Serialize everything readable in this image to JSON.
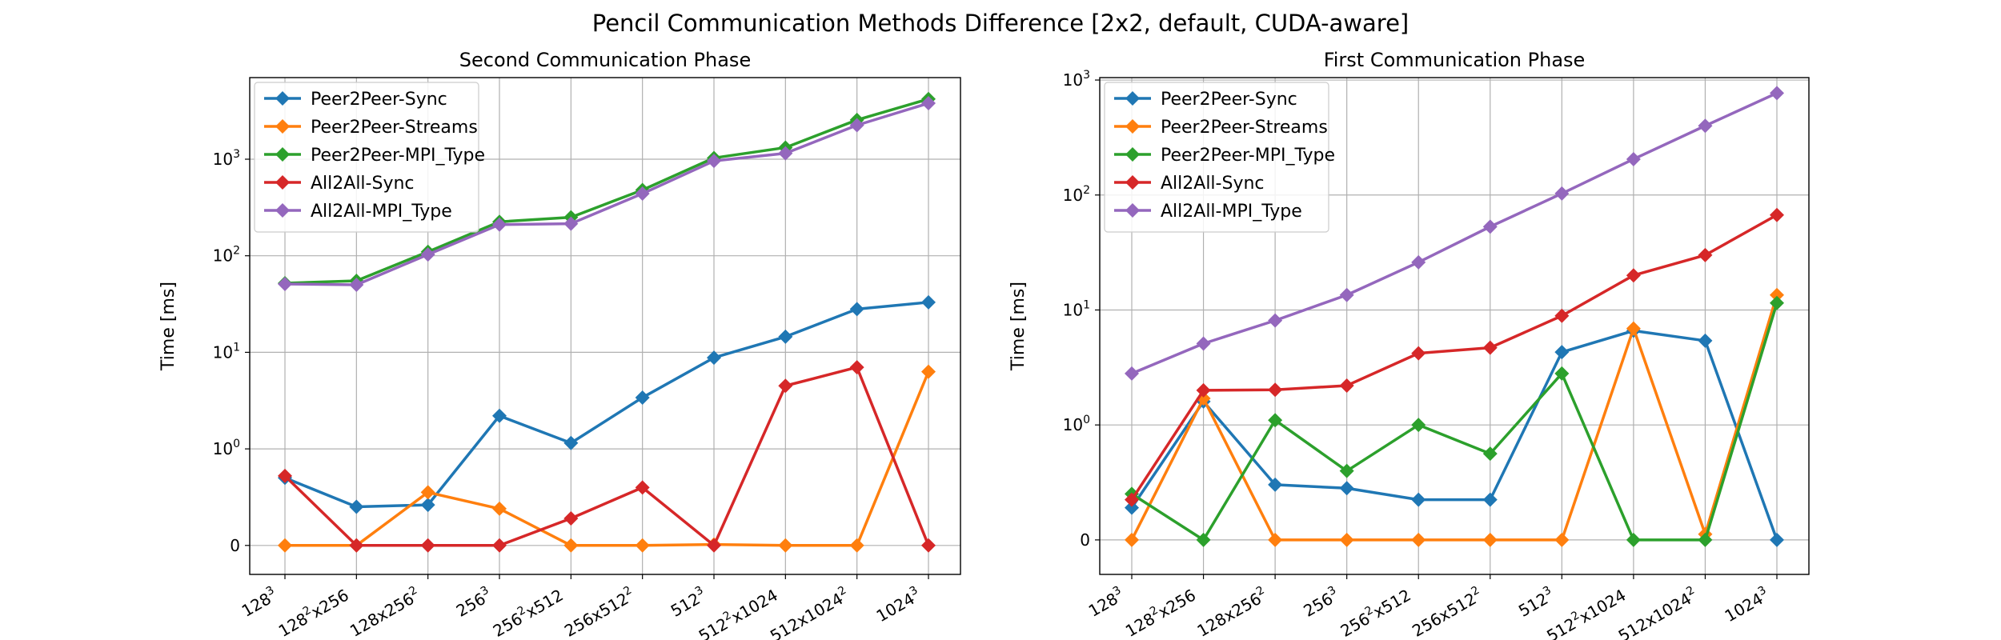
{
  "figure": {
    "title": "Pencil Communication Methods Difference [2x2, default, CUDA-aware]"
  },
  "chart_data": [
    {
      "type": "line",
      "title": "Second Communication Phase",
      "ylabel": "Time [ms]",
      "xlabel": "",
      "yscale": "symlog",
      "ylim": [
        -0.3,
        7000
      ],
      "yticks": [
        {
          "value": 0,
          "label": "0"
        },
        {
          "value": 1,
          "label": "10",
          "sup": "0"
        },
        {
          "value": 10,
          "label": "10",
          "sup": "1"
        },
        {
          "value": 100,
          "label": "10",
          "sup": "2"
        },
        {
          "value": 1000,
          "label": "10",
          "sup": "3"
        }
      ],
      "grid": true,
      "legend": "upper-left",
      "categories": [
        {
          "base": "128",
          "sup": "3",
          "tail": ""
        },
        {
          "base": "128",
          "sup": "2",
          "tail": "x256"
        },
        {
          "base": "128x256",
          "sup": "2",
          "tail": ""
        },
        {
          "base": "256",
          "sup": "3",
          "tail": ""
        },
        {
          "base": "256",
          "sup": "2",
          "tail": "x512"
        },
        {
          "base": "256x512",
          "sup": "2",
          "tail": ""
        },
        {
          "base": "512",
          "sup": "3",
          "tail": ""
        },
        {
          "base": "512",
          "sup": "2",
          "tail": "x1024"
        },
        {
          "base": "512x1024",
          "sup": "2",
          "tail": ""
        },
        {
          "base": "1024",
          "sup": "3",
          "tail": ""
        }
      ],
      "series": [
        {
          "name": "Peer2Peer-Sync",
          "color": "#1f77b4",
          "values": [
            0.7,
            0.4,
            0.42,
            2.2,
            1.15,
            3.4,
            8.8,
            14.5,
            28,
            33
          ]
        },
        {
          "name": "Peer2Peer-Streams",
          "color": "#ff7f0e",
          "values": [
            0.0,
            0.0,
            0.55,
            0.38,
            0.0,
            0.0,
            0.01,
            0.0,
            0.0,
            6.3
          ]
        },
        {
          "name": "Peer2Peer-MPI_Type",
          "color": "#2ca02c",
          "values": [
            52,
            55,
            110,
            225,
            250,
            480,
            1030,
            1320,
            2550,
            4200
          ]
        },
        {
          "name": "All2All-Sync",
          "color": "#d62728",
          "values": [
            0.72,
            0.0,
            0.0,
            0.0,
            0.28,
            0.6,
            0.0,
            4.5,
            7.0,
            0.0
          ]
        },
        {
          "name": "All2All-MPI_Type",
          "color": "#9467bd",
          "values": [
            51,
            50,
            103,
            210,
            215,
            440,
            960,
            1150,
            2250,
            3800
          ]
        }
      ]
    },
    {
      "type": "line",
      "title": "First Communication Phase",
      "ylabel": "Time [ms]",
      "xlabel": "",
      "yscale": "symlog",
      "ylim": [
        -0.3,
        1050
      ],
      "yticks": [
        {
          "value": 0,
          "label": "0"
        },
        {
          "value": 1,
          "label": "10",
          "sup": "0"
        },
        {
          "value": 10,
          "label": "10",
          "sup": "1"
        },
        {
          "value": 100,
          "label": "10",
          "sup": "2"
        },
        {
          "value": 1000,
          "label": "10",
          "sup": "3"
        }
      ],
      "grid": true,
      "legend": "upper-left",
      "categories": [
        {
          "base": "128",
          "sup": "3",
          "tail": ""
        },
        {
          "base": "128",
          "sup": "2",
          "tail": "x256"
        },
        {
          "base": "128x256",
          "sup": "2",
          "tail": ""
        },
        {
          "base": "256",
          "sup": "3",
          "tail": ""
        },
        {
          "base": "256",
          "sup": "2",
          "tail": "x512"
        },
        {
          "base": "256x512",
          "sup": "2",
          "tail": ""
        },
        {
          "base": "512",
          "sup": "3",
          "tail": ""
        },
        {
          "base": "512",
          "sup": "2",
          "tail": "x1024"
        },
        {
          "base": "512x1024",
          "sup": "2",
          "tail": ""
        },
        {
          "base": "1024",
          "sup": "3",
          "tail": ""
        }
      ],
      "series": [
        {
          "name": "Peer2Peer-Sync",
          "color": "#1f77b4",
          "values": [
            0.28,
            1.6,
            0.48,
            0.45,
            0.35,
            0.35,
            4.3,
            6.6,
            5.4,
            0.0
          ]
        },
        {
          "name": "Peer2Peer-Streams",
          "color": "#ff7f0e",
          "values": [
            0.0,
            1.7,
            0.0,
            0.0,
            0.0,
            0.0,
            0.0,
            6.9,
            0.05,
            13.5
          ]
        },
        {
          "name": "Peer2Peer-MPI_Type",
          "color": "#2ca02c",
          "values": [
            0.4,
            0.0,
            1.1,
            0.6,
            1.0,
            0.75,
            2.8,
            0.0,
            0.0,
            11.5
          ]
        },
        {
          "name": "All2All-Sync",
          "color": "#d62728",
          "values": [
            0.35,
            2.0,
            2.02,
            2.2,
            4.2,
            4.7,
            8.9,
            20,
            30,
            67
          ]
        },
        {
          "name": "All2All-MPI_Type",
          "color": "#9467bd",
          "values": [
            2.8,
            5.1,
            8.1,
            13.5,
            26,
            53,
            103,
            205,
            400,
            770
          ]
        }
      ]
    }
  ]
}
